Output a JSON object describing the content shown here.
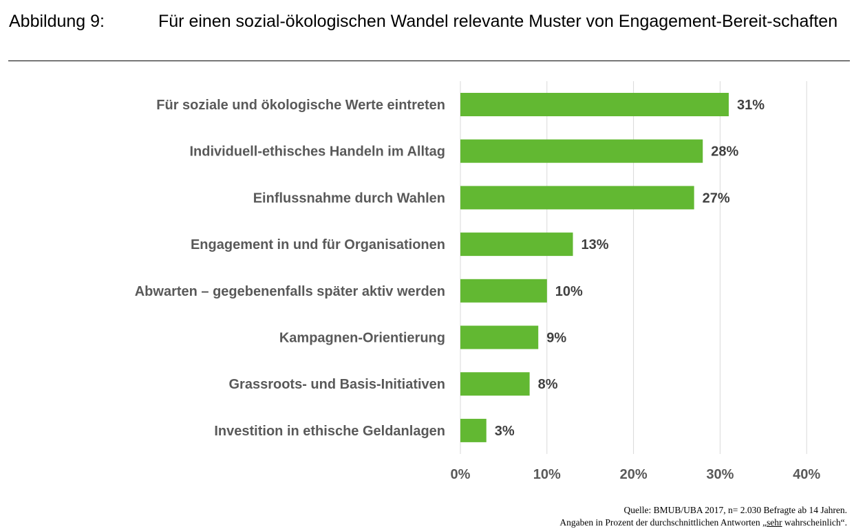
{
  "figure": {
    "label": "Abbildung 9:",
    "title": "Für einen sozial-ökologischen Wandel relevante Muster von Engagement-Bereit-schaften"
  },
  "chart_data": {
    "type": "bar",
    "orientation": "horizontal",
    "categories": [
      "Für soziale und ökologische Werte eintreten",
      "Individuell-ethisches Handeln im Alltag",
      "Einflussnahme durch Wahlen",
      "Engagement in und für Organisationen",
      "Abwarten – gegebenenfalls später aktiv werden",
      "Kampagnen-Orientierung",
      "Grassroots- und Basis-Initiativen",
      "Investition in ethische Geldanlagen"
    ],
    "values": [
      31,
      28,
      27,
      13,
      10,
      9,
      8,
      3
    ],
    "value_labels": [
      "31%",
      "28%",
      "27%",
      "13%",
      "10%",
      "9%",
      "8%",
      "3%"
    ],
    "xlim": [
      0,
      40
    ],
    "xticks": [
      0,
      10,
      20,
      30,
      40
    ],
    "xtick_labels": [
      "0%",
      "10%",
      "20%",
      "30%",
      "40%"
    ],
    "grid": true,
    "bar_color": "#62B832",
    "grid_color": "#D9D9D9"
  },
  "source": {
    "line1": "Quelle: BMUB/UBA 2017, n= 2.030 Befragte ab 14 Jahren.",
    "line2_prefix": "Angaben in Prozent der durchschnittlichen Antworten „",
    "line2_emphasis": "sehr",
    "line2_suffix": " wahrscheinlich“."
  }
}
